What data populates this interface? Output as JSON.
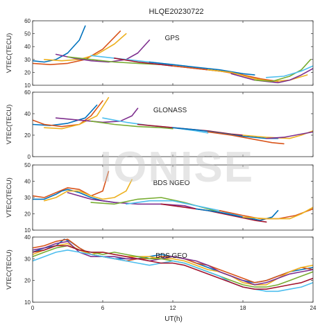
{
  "figure": {
    "title": "HLQE20230722",
    "watermark": "IONISE",
    "xlabel": "UT(h)",
    "xticks": [
      0,
      6,
      12,
      18,
      24
    ],
    "xlim": [
      0,
      24
    ],
    "line_colors": [
      "#0072BD",
      "#D95319",
      "#EDB120",
      "#7E2F8E",
      "#77AC30",
      "#4DBEEE",
      "#A2142F"
    ]
  },
  "chart_data": [
    {
      "type": "line",
      "system": "GPS",
      "ylabel": "VTEC(TECU)",
      "ylim": [
        10,
        60
      ],
      "yticks": [
        10,
        20,
        30,
        40,
        50,
        60
      ],
      "series": [
        {
          "x": [
            0,
            1,
            2,
            3,
            4,
            4.5
          ],
          "y": [
            29,
            28,
            30,
            35,
            45,
            56
          ]
        },
        {
          "x": [
            0,
            1.5,
            3,
            4.5,
            6,
            7.5
          ],
          "y": [
            27,
            26,
            27,
            30,
            38,
            52
          ]
        },
        {
          "x": [
            1,
            2.5,
            4,
            5.5,
            7,
            8
          ],
          "y": [
            30,
            29,
            30,
            34,
            42,
            50
          ]
        },
        {
          "x": [
            2,
            3.5,
            5,
            6.5,
            8,
            9,
            10
          ],
          "y": [
            34,
            31,
            29,
            28,
            30,
            35,
            45
          ]
        },
        {
          "x": [
            3,
            5,
            7,
            9,
            11,
            12
          ],
          "y": [
            32,
            30,
            28,
            27,
            26,
            25
          ]
        },
        {
          "x": [
            5,
            7,
            9,
            11,
            13,
            15,
            16
          ],
          "y": [
            33,
            31,
            29,
            27,
            25,
            22,
            21
          ]
        },
        {
          "x": [
            7,
            9,
            11,
            13,
            15,
            17
          ],
          "y": [
            31,
            28,
            26,
            24,
            22,
            20
          ]
        },
        {
          "x": [
            10,
            12,
            14,
            16,
            18,
            19
          ],
          "y": [
            28,
            26,
            24,
            22,
            19,
            18
          ]
        },
        {
          "x": [
            12,
            14,
            16,
            18,
            19.5,
            21
          ],
          "y": [
            25,
            23,
            21,
            18,
            15,
            13
          ]
        },
        {
          "x": [
            15,
            17,
            19,
            20.5,
            22,
            23.5
          ],
          "y": [
            22,
            20,
            15,
            13,
            14,
            18
          ]
        },
        {
          "x": [
            17,
            19,
            21,
            22,
            23,
            24
          ],
          "y": [
            19,
            14,
            12,
            14,
            18,
            23
          ]
        },
        {
          "x": [
            19,
            20.5,
            22,
            23,
            23.8
          ],
          "y": [
            14,
            13,
            17,
            22,
            30
          ]
        },
        {
          "x": [
            20,
            21.5,
            23,
            24
          ],
          "y": [
            16,
            17,
            21,
            25
          ]
        }
      ]
    },
    {
      "type": "line",
      "system": "GLONASS",
      "ylabel": "VTEC(TECU)",
      "ylim": [
        0,
        60
      ],
      "yticks": [
        0,
        20,
        40,
        60
      ],
      "series": [
        {
          "x": [
            0,
            1.5,
            3,
            4.5,
            5.5
          ],
          "y": [
            30,
            29,
            31,
            36,
            48
          ]
        },
        {
          "x": [
            0,
            1,
            2.5,
            4,
            5,
            6
          ],
          "y": [
            34,
            30,
            28,
            30,
            38,
            52
          ]
        },
        {
          "x": [
            1,
            2.5,
            4,
            5.5,
            6.5
          ],
          "y": [
            27,
            26,
            30,
            38,
            55
          ]
        },
        {
          "x": [
            2,
            4,
            6,
            7.5,
            8.5,
            9
          ],
          "y": [
            36,
            34,
            32,
            33,
            38,
            45
          ]
        },
        {
          "x": [
            5,
            7,
            9,
            11,
            12
          ],
          "y": [
            33,
            30,
            28,
            27,
            26
          ]
        },
        {
          "x": [
            6,
            8,
            10,
            12,
            14,
            15
          ],
          "y": [
            36,
            32,
            29,
            27,
            24,
            22
          ]
        },
        {
          "x": [
            9,
            11,
            13,
            15,
            17,
            18
          ],
          "y": [
            30,
            28,
            26,
            24,
            21,
            20
          ]
        },
        {
          "x": [
            12,
            14,
            16,
            18,
            20,
            21
          ],
          "y": [
            27,
            25,
            22,
            19,
            17,
            17
          ]
        },
        {
          "x": [
            15,
            17,
            19,
            20.5,
            21.5
          ],
          "y": [
            23,
            20,
            16,
            13,
            12
          ]
        },
        {
          "x": [
            18,
            20,
            22,
            23,
            24
          ],
          "y": [
            20,
            18,
            17,
            20,
            24
          ]
        },
        {
          "x": [
            20,
            21.5,
            23,
            24
          ],
          "y": [
            17,
            18,
            21,
            23
          ]
        }
      ]
    },
    {
      "type": "line",
      "system": "BDS NGEO",
      "ylabel": "VTEC(TECU)",
      "ylim": [
        10,
        50
      ],
      "yticks": [
        10,
        20,
        30,
        40,
        50
      ],
      "series": [
        {
          "x": [
            0,
            1,
            2,
            2.5,
            3,
            4,
            5,
            6,
            7
          ],
          "y": [
            29,
            29,
            32,
            34,
            35,
            33,
            30,
            28,
            27
          ]
        },
        {
          "x": [
            0,
            1,
            2,
            3,
            4,
            5,
            6,
            6.5
          ],
          "y": [
            31,
            30,
            33,
            36,
            35,
            31,
            34,
            46
          ]
        },
        {
          "x": [
            1,
            2,
            3,
            4,
            5,
            6,
            7,
            8,
            8.5
          ],
          "y": [
            28,
            30,
            34,
            34,
            31,
            29,
            30,
            34,
            41
          ]
        },
        {
          "x": [
            3,
            5,
            7,
            9,
            11,
            13,
            14
          ],
          "y": [
            33,
            29,
            27,
            26,
            26,
            25,
            23
          ]
        },
        {
          "x": [
            5,
            7,
            9,
            11,
            13,
            15,
            16
          ],
          "y": [
            27,
            26,
            29,
            30,
            27,
            23,
            21
          ]
        },
        {
          "x": [
            8,
            10,
            12,
            14,
            16,
            18,
            19
          ],
          "y": [
            26,
            28,
            28,
            25,
            22,
            18,
            17
          ]
        },
        {
          "x": [
            11,
            13,
            15,
            17,
            19,
            20
          ],
          "y": [
            26,
            24,
            22,
            19,
            16,
            15
          ]
        },
        {
          "x": [
            14,
            16,
            18,
            19.5,
            20.5,
            21
          ],
          "y": [
            23,
            21,
            18,
            16,
            18,
            22
          ]
        },
        {
          "x": [
            16,
            18,
            19.5,
            21,
            22.5,
            24
          ],
          "y": [
            22,
            19,
            17,
            17,
            19,
            23
          ]
        },
        {
          "x": [
            18,
            20,
            22,
            23,
            24
          ],
          "y": [
            18,
            17,
            17,
            20,
            24
          ]
        }
      ]
    },
    {
      "type": "line",
      "system": "BDS GEO",
      "ylabel": "VTEC(TECU)",
      "ylim": [
        10,
        40
      ],
      "yticks": [
        10,
        20,
        30,
        40
      ],
      "series": [
        {
          "x": [
            0,
            1,
            2,
            2.7,
            3.2,
            4,
            5,
            6,
            7,
            8,
            9,
            10,
            11,
            12,
            13,
            14,
            15,
            16,
            17,
            18,
            19,
            20,
            21,
            22,
            23,
            24
          ],
          "y": [
            33,
            35,
            36,
            39,
            38,
            35,
            32,
            31,
            30,
            30,
            30,
            31,
            32,
            31,
            30,
            28,
            26,
            24,
            22,
            20,
            19,
            20,
            22,
            24,
            25,
            26
          ]
        },
        {
          "x": [
            0,
            1,
            2,
            3,
            4,
            5,
            6,
            7,
            8,
            9,
            10,
            11,
            12,
            13,
            14,
            15,
            16,
            17,
            18,
            19,
            20,
            21,
            22,
            23,
            24
          ],
          "y": [
            35,
            36,
            38,
            39,
            35,
            32,
            31,
            30,
            29,
            30,
            30,
            31,
            31,
            30,
            28,
            27,
            25,
            23,
            21,
            19,
            20,
            22,
            24,
            26,
            25
          ]
        },
        {
          "x": [
            0,
            1,
            2,
            3,
            4,
            5,
            6,
            7,
            8,
            9,
            10,
            11,
            12,
            13,
            14,
            15,
            16,
            17,
            18,
            19,
            20,
            21,
            22,
            23,
            24
          ],
          "y": [
            32,
            34,
            36,
            37,
            34,
            32,
            33,
            32,
            31,
            31,
            31,
            30,
            30,
            29,
            27,
            25,
            24,
            22,
            19,
            18,
            18,
            21,
            24,
            26,
            27
          ]
        },
        {
          "x": [
            0,
            1,
            2,
            3,
            4,
            5,
            6,
            7,
            8,
            9,
            10,
            11,
            12,
            13,
            14,
            15,
            16,
            17,
            18,
            19,
            20,
            21,
            22,
            23,
            24
          ],
          "y": [
            34,
            35,
            37,
            38,
            33,
            31,
            31,
            31,
            30,
            30,
            29,
            30,
            31,
            30,
            29,
            27,
            24,
            22,
            20,
            18,
            19,
            21,
            23,
            24,
            25
          ]
        },
        {
          "x": [
            0,
            1,
            2,
            3,
            4,
            5,
            6,
            7,
            8,
            9,
            10,
            11,
            12,
            13,
            14,
            15,
            16,
            17,
            18,
            19,
            20,
            21,
            22,
            23,
            24
          ],
          "y": [
            31,
            33,
            35,
            36,
            34,
            33,
            32,
            33,
            32,
            31,
            30,
            30,
            29,
            28,
            26,
            24,
            22,
            20,
            18,
            17,
            17,
            18,
            20,
            22,
            24
          ]
        },
        {
          "x": [
            0,
            1,
            2,
            3,
            4,
            5,
            6,
            7,
            8,
            9,
            10,
            11,
            12,
            13,
            14,
            15,
            16,
            17,
            18,
            19,
            20,
            21,
            22,
            23,
            24
          ],
          "y": [
            29,
            31,
            33,
            34,
            33,
            32,
            31,
            30,
            29,
            28,
            27,
            28,
            29,
            28,
            26,
            24,
            22,
            19,
            17,
            16,
            15,
            15,
            16,
            17,
            19
          ]
        },
        {
          "x": [
            0,
            1,
            2,
            3,
            4,
            5,
            6,
            7,
            8,
            9,
            10,
            11,
            12,
            13,
            14,
            15,
            16,
            17,
            18,
            19,
            20,
            21,
            22,
            23,
            24
          ],
          "y": [
            33,
            34,
            36,
            36,
            34,
            33,
            33,
            32,
            31,
            30,
            29,
            28,
            28,
            27,
            25,
            23,
            21,
            19,
            17,
            16,
            16,
            17,
            18,
            19,
            21
          ]
        }
      ]
    }
  ]
}
